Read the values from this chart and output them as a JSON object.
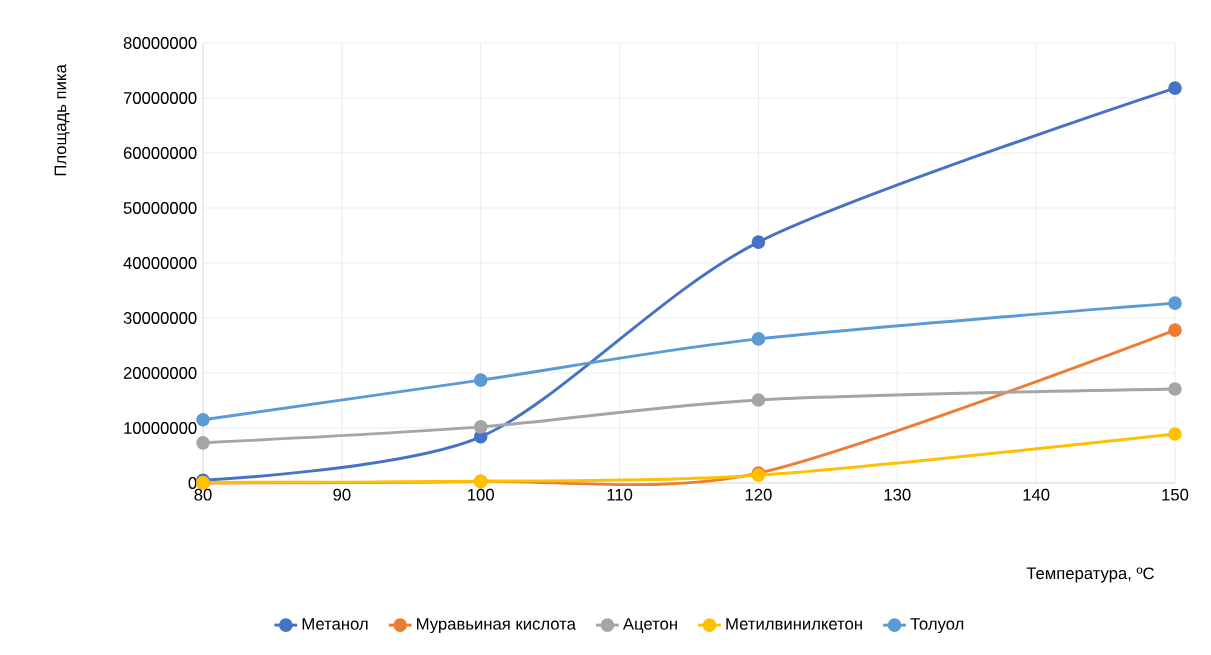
{
  "chart_data": {
    "type": "line",
    "xlabel": "Температура, ºC",
    "ylabel": "Площадь пика",
    "x": [
      80,
      100,
      120,
      150
    ],
    "series": [
      {
        "name": "Метанол",
        "color": "#4472c4",
        "values": [
          500000,
          8400000,
          43800000,
          71800000
        ]
      },
      {
        "name": "Муравьиная кислота",
        "color": "#ed7d31",
        "values": [
          0,
          300000,
          1800000,
          27800000
        ]
      },
      {
        "name": "Ацетон",
        "color": "#a5a5a5",
        "values": [
          7300000,
          10200000,
          15100000,
          17100000
        ]
      },
      {
        "name": "Метилвинилкетон",
        "color": "#ffc000",
        "values": [
          100000,
          300000,
          1400000,
          8900000
        ]
      },
      {
        "name": "Толуол",
        "color": "#5b9bd5",
        "values": [
          11500000,
          18700000,
          26200000,
          32700000
        ]
      }
    ],
    "xlim": [
      80,
      150
    ],
    "xticks": [
      80,
      90,
      100,
      110,
      120,
      130,
      140,
      150
    ],
    "ylim": [
      0,
      80000000
    ],
    "yticks": [
      0,
      10000000,
      20000000,
      30000000,
      40000000,
      50000000,
      60000000,
      70000000,
      80000000
    ],
    "grid": true,
    "legend": "bottom",
    "marker": "circle",
    "line_style": "solid"
  }
}
